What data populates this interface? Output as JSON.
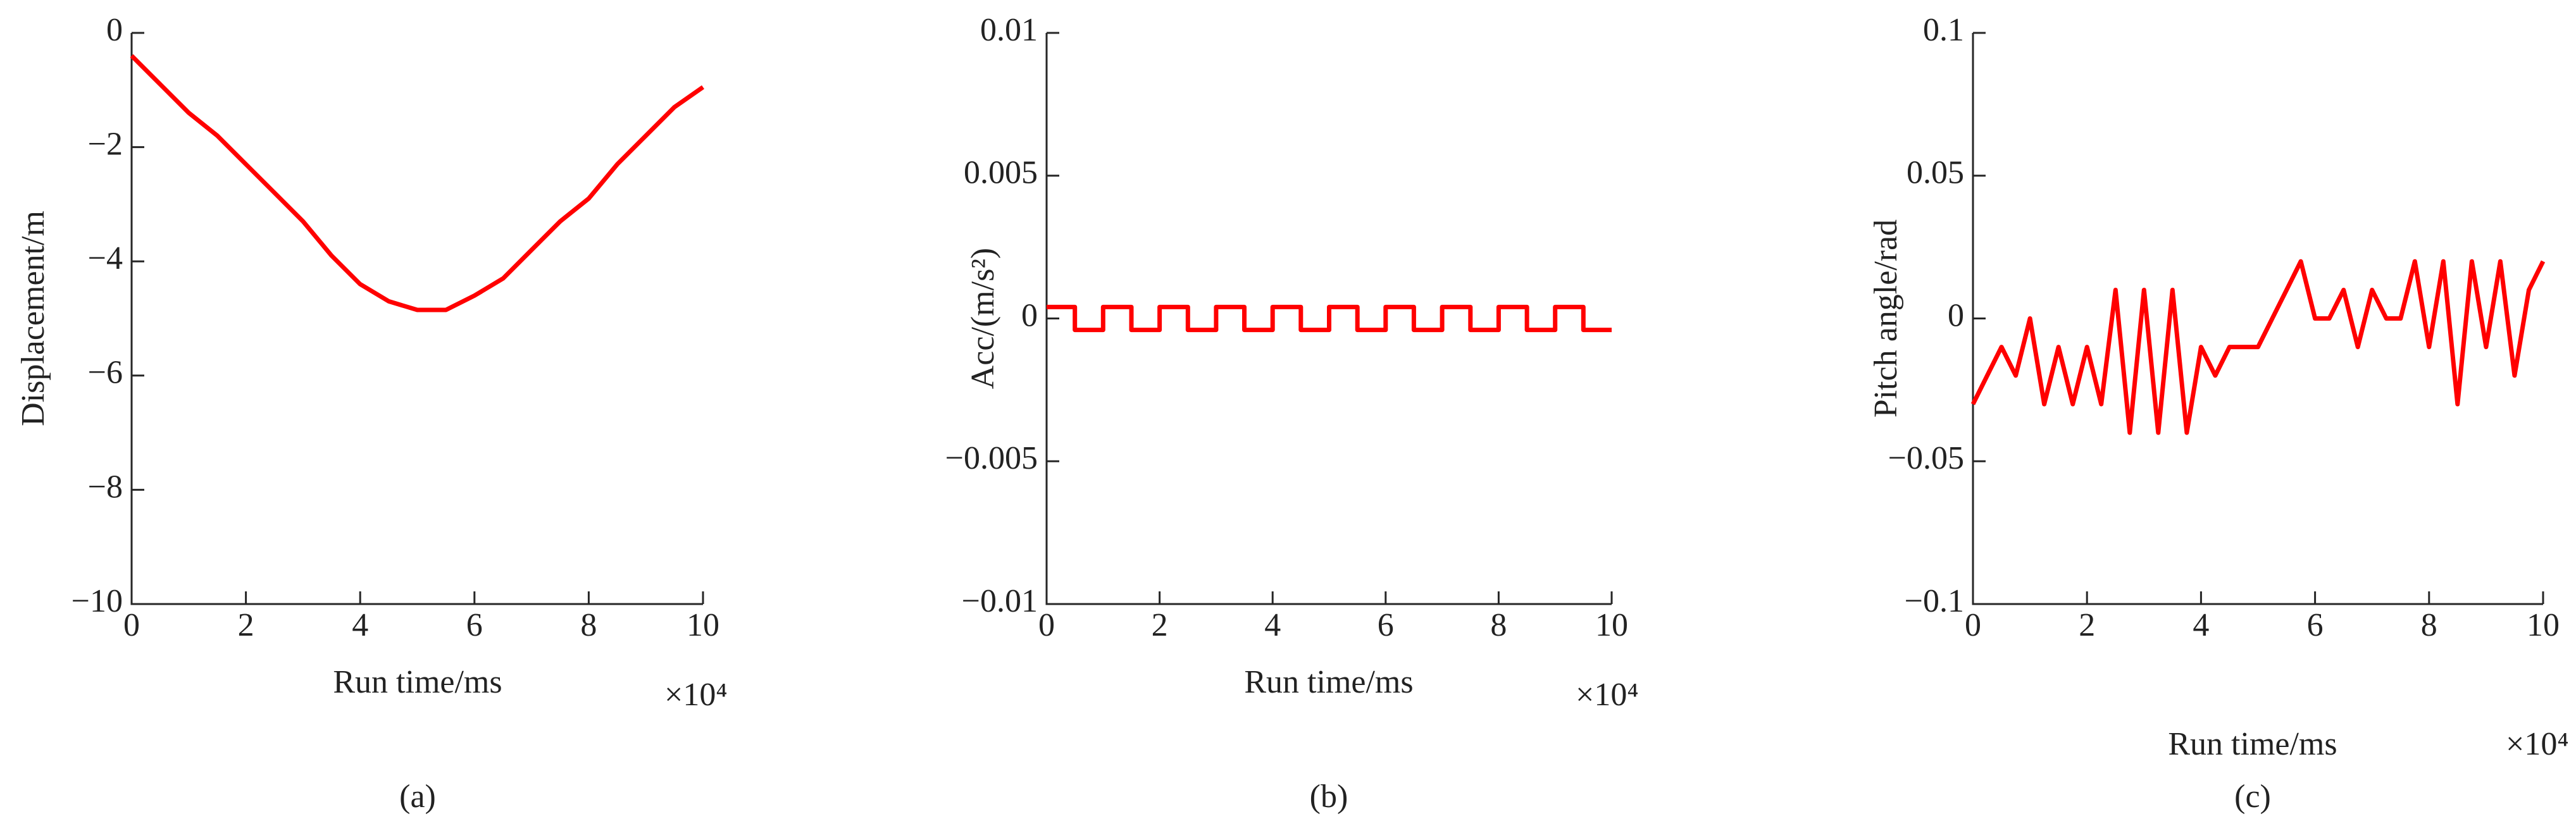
{
  "chart_data": [
    {
      "type": "line",
      "panel_label": "(a)",
      "xlabel": "Run time/ms",
      "ylabel": "Displacement/m",
      "x_multiplier": "×10⁴",
      "x": [
        0,
        0.5,
        1,
        1.5,
        2,
        2.5,
        3,
        3.5,
        4,
        4.5,
        5,
        5.5,
        6,
        6.5,
        7,
        7.5,
        8,
        8.5,
        9,
        9.5,
        10
      ],
      "series": [
        {
          "color": "#ff0000",
          "values": [
            -0.4,
            -0.9,
            -1.4,
            -1.8,
            -2.3,
            -2.8,
            -3.3,
            -3.9,
            -4.4,
            -4.7,
            -4.85,
            -4.85,
            -4.6,
            -4.3,
            -3.8,
            -3.3,
            -2.9,
            -2.3,
            -1.8,
            -1.3,
            -0.95
          ]
        }
      ],
      "xlim": [
        0,
        10
      ],
      "xticks": [
        0,
        2,
        4,
        6,
        8,
        10
      ],
      "ylim": [
        -10,
        0
      ],
      "yticks": [
        {
          "value": -10,
          "label": "−10"
        },
        {
          "value": -8,
          "label": "−8"
        },
        {
          "value": -6,
          "label": "−6"
        },
        {
          "value": -4,
          "label": "−4"
        },
        {
          "value": -2,
          "label": "−2"
        },
        0
      ]
    },
    {
      "type": "line",
      "panel_label": "(b)",
      "xlabel": "Run time/ms",
      "ylabel": "Acc/(m/s²)",
      "x_multiplier": "×10⁴",
      "x": [
        0,
        0.5,
        0.5,
        1,
        1,
        1.5,
        1.5,
        2,
        2,
        2.5,
        2.5,
        3,
        3,
        3.5,
        3.5,
        4,
        4,
        4.5,
        4.5,
        5,
        5,
        5.5,
        5.5,
        6,
        6,
        6.5,
        6.5,
        7,
        7,
        7.5,
        7.5,
        8,
        8,
        8.5,
        8.5,
        9,
        9,
        9.5,
        9.5,
        10
      ],
      "series": [
        {
          "color": "#ff0000",
          "values": [
            0.0004,
            0.0004,
            -0.0004,
            -0.0004,
            0.0004,
            0.0004,
            -0.0004,
            -0.0004,
            0.0004,
            0.0004,
            -0.0004,
            -0.0004,
            0.0004,
            0.0004,
            -0.0004,
            -0.0004,
            0.0004,
            0.0004,
            -0.0004,
            -0.0004,
            0.0004,
            0.0004,
            -0.0004,
            -0.0004,
            0.0004,
            0.0004,
            -0.0004,
            -0.0004,
            0.0004,
            0.0004,
            -0.0004,
            -0.0004,
            0.0004,
            0.0004,
            -0.0004,
            -0.0004,
            0.0004,
            0.0004,
            -0.0004,
            -0.0004
          ]
        }
      ],
      "xlim": [
        0,
        10
      ],
      "xticks": [
        0,
        2,
        4,
        6,
        8,
        10
      ],
      "ylim": [
        -0.01,
        0.01
      ],
      "yticks": [
        {
          "value": -0.01,
          "label": "−0.01"
        },
        {
          "value": -0.005,
          "label": "−0.005"
        },
        0,
        0.005,
        0.01
      ]
    },
    {
      "type": "line",
      "panel_label": "(c)",
      "xlabel": "Run time/ms",
      "ylabel": "Pitch angle/rad",
      "x_multiplier": "×10⁴",
      "x": [
        0,
        0.25,
        0.5,
        0.75,
        1,
        1.25,
        1.5,
        1.75,
        2,
        2.25,
        2.5,
        2.75,
        3,
        3.25,
        3.5,
        3.75,
        4,
        4.25,
        4.5,
        4.75,
        5,
        5.25,
        5.5,
        5.75,
        6,
        6.25,
        6.5,
        6.75,
        7,
        7.25,
        7.5,
        7.75,
        8,
        8.25,
        8.5,
        8.75,
        9,
        9.25,
        9.5,
        9.75,
        10
      ],
      "series": [
        {
          "color": "#ff0000",
          "values": [
            -0.03,
            -0.02,
            -0.01,
            -0.02,
            0,
            -0.03,
            -0.01,
            -0.03,
            -0.01,
            -0.03,
            0.01,
            -0.04,
            0.01,
            -0.04,
            0.01,
            -0.04,
            -0.01,
            -0.02,
            -0.01,
            -0.01,
            -0.01,
            0,
            0.01,
            0.02,
            0,
            0,
            0.01,
            -0.01,
            0.01,
            0,
            0,
            0.02,
            -0.01,
            0.02,
            -0.03,
            0.02,
            -0.01,
            0.02,
            -0.02,
            0.01,
            0.02
          ]
        }
      ],
      "xlim": [
        0,
        10
      ],
      "xticks": [
        0,
        2,
        4,
        6,
        8,
        10
      ],
      "ylim": [
        -0.1,
        0.1
      ],
      "yticks": [
        {
          "value": -0.1,
          "label": "−0.1"
        },
        {
          "value": -0.05,
          "label": "−0.05"
        },
        0,
        0.05,
        0.1
      ]
    }
  ]
}
